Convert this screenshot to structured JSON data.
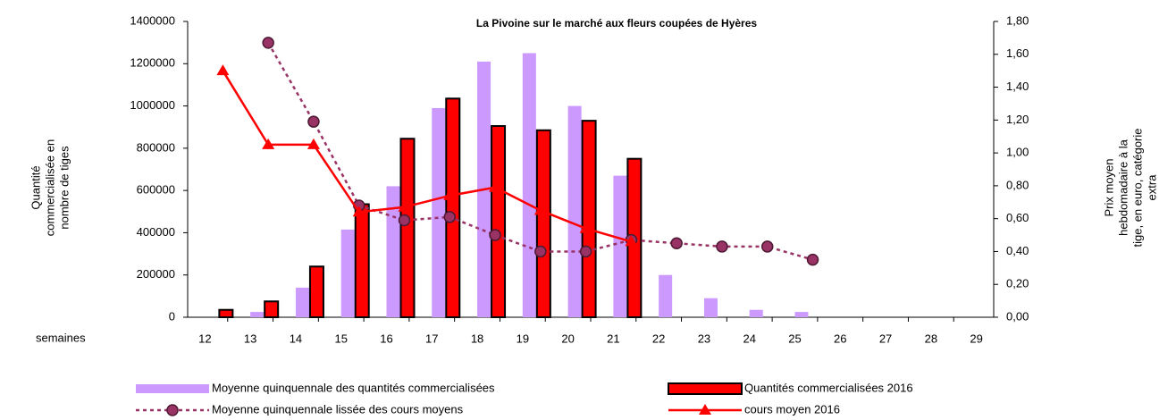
{
  "chart_data": {
    "type": "bar",
    "title": "La Pivoine sur le marché aux fleurs coupées de Hyères",
    "xlabel": "semaines",
    "ylabel": [
      "Quantité",
      "commercialisée en",
      "nombre de tiges"
    ],
    "y2label": [
      "Prix moyen",
      "hebdomadaire à la",
      "tige, en euro, catégorie",
      "extra"
    ],
    "categories": [
      "12",
      "13",
      "14",
      "15",
      "16",
      "17",
      "18",
      "19",
      "20",
      "21",
      "22",
      "23",
      "24",
      "25",
      "26",
      "27",
      "28",
      "29"
    ],
    "ylim": [
      0,
      1400000
    ],
    "yticks": [
      0,
      200000,
      400000,
      600000,
      800000,
      1000000,
      1200000,
      1400000
    ],
    "y2lim": [
      0,
      1.8
    ],
    "y2ticks": [
      {
        "value": 0,
        "label": "0,00"
      },
      {
        "value": 0.2,
        "label": "0,20"
      },
      {
        "value": 0.4,
        "label": "0,40"
      },
      {
        "value": 0.6,
        "label": "0,60"
      },
      {
        "value": 0.8,
        "label": "0,80"
      },
      {
        "value": 1.0,
        "label": "1,00"
      },
      {
        "value": 1.2,
        "label": "1,20"
      },
      {
        "value": 1.4,
        "label": "1,40"
      },
      {
        "value": 1.6,
        "label": "1,60"
      },
      {
        "value": 1.8,
        "label": "1,80"
      }
    ],
    "grid": false,
    "series": [
      {
        "name": "Moyenne quinquennale des quantités commercialisées",
        "type": "bar",
        "color": "#cc99ff",
        "values": [
          null,
          25000,
          140000,
          415000,
          620000,
          990000,
          1210000,
          1250000,
          1000000,
          670000,
          200000,
          90000,
          35000,
          25000,
          null,
          null,
          null,
          null
        ]
      },
      {
        "name": "Quantités commercialisées 2016",
        "type": "bar",
        "color": "#ff0000",
        "edge": "#000000",
        "values": [
          35000,
          75000,
          240000,
          535000,
          845000,
          1035000,
          905000,
          885000,
          930000,
          750000,
          null,
          null,
          null,
          null,
          null,
          null,
          null,
          null
        ]
      },
      {
        "name": "Moyenne quinquennale lissée des cours moyens",
        "type": "line",
        "axis": "y2",
        "color": "#993366",
        "dash": "dotted",
        "marker": "circle",
        "values": [
          null,
          1.67,
          1.19,
          0.68,
          0.59,
          0.61,
          0.5,
          0.4,
          0.4,
          0.47,
          0.45,
          0.43,
          0.43,
          0.35,
          null,
          null,
          null,
          null
        ]
      },
      {
        "name": "cours moyen 2016",
        "type": "line",
        "axis": "y2",
        "color": "#ff0000",
        "marker": "triangle",
        "values": [
          1.5,
          1.05,
          1.05,
          0.64,
          0.67,
          0.74,
          0.79,
          0.65,
          0.54,
          0.46,
          null,
          null,
          null,
          null,
          null,
          null,
          null,
          null
        ]
      }
    ]
  }
}
